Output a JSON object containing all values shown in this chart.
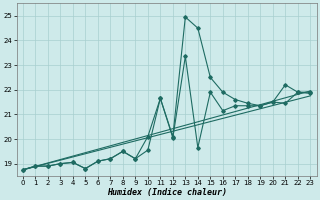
{
  "xlabel": "Humidex (Indice chaleur)",
  "ylabel": "",
  "xlim": [
    -0.5,
    23.5
  ],
  "ylim": [
    18.5,
    25.5
  ],
  "xticks": [
    0,
    1,
    2,
    3,
    4,
    5,
    6,
    7,
    8,
    9,
    10,
    11,
    12,
    13,
    14,
    15,
    16,
    17,
    18,
    19,
    20,
    21,
    22,
    23
  ],
  "yticks": [
    19,
    20,
    21,
    22,
    23,
    24,
    25
  ],
  "background_color": "#ceeaea",
  "line_color": "#1e6b62",
  "grid_color": "#a8cfcf",
  "line1_x": [
    0,
    1,
    2,
    3,
    4,
    5,
    6,
    7,
    8,
    9,
    10,
    11,
    12,
    13,
    14,
    15,
    16,
    17,
    18,
    19,
    20,
    21,
    22,
    23
  ],
  "line1_y": [
    18.75,
    18.9,
    18.9,
    19.0,
    19.05,
    18.8,
    19.1,
    19.2,
    19.5,
    19.2,
    20.1,
    21.65,
    20.05,
    23.35,
    19.65,
    21.9,
    21.15,
    21.35,
    21.35,
    21.35,
    21.5,
    21.45,
    21.9,
    21.85
  ],
  "line2_x": [
    0,
    1,
    2,
    3,
    4,
    5,
    6,
    7,
    8,
    9,
    10,
    11,
    12,
    13,
    14,
    15,
    16,
    17,
    18,
    19,
    20,
    21,
    22,
    23
  ],
  "line2_y": [
    18.75,
    18.9,
    18.9,
    19.0,
    19.05,
    18.8,
    19.1,
    19.2,
    19.5,
    19.2,
    19.55,
    21.65,
    20.1,
    24.95,
    24.5,
    22.5,
    21.9,
    21.6,
    21.45,
    21.35,
    21.5,
    22.2,
    21.9,
    21.9
  ],
  "trend1_x": [
    0,
    23
  ],
  "trend1_y": [
    18.75,
    21.95
  ],
  "trend2_x": [
    0,
    23
  ],
  "trend2_y": [
    18.75,
    21.75
  ]
}
